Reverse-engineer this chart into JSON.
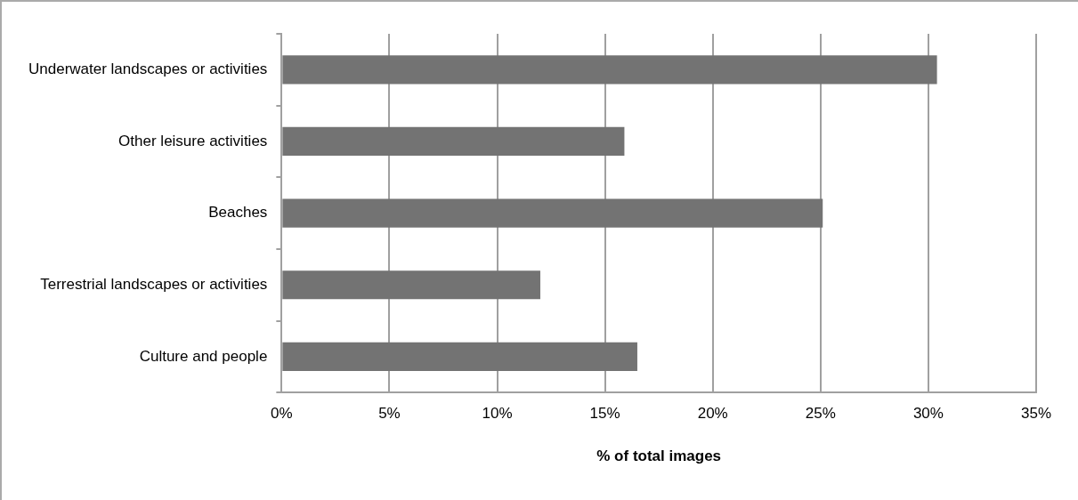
{
  "chart_data": {
    "type": "bar",
    "orientation": "horizontal",
    "xlabel": "% of total images",
    "categories": [
      "Underwater landscapes or activities",
      "Other leisure activities",
      "Beaches",
      "Terrestrial landscapes or activities",
      "Culture and people"
    ],
    "values": [
      30.4,
      15.9,
      25.1,
      12.0,
      16.5
    ],
    "color": "#737373",
    "xlim": [
      0,
      35
    ],
    "xticks": [
      {
        "value": 0,
        "label": "0%"
      },
      {
        "value": 5,
        "label": "5%"
      },
      {
        "value": 10,
        "label": "10%"
      },
      {
        "value": 15,
        "label": "15%"
      },
      {
        "value": 20,
        "label": "20%"
      },
      {
        "value": 25,
        "label": "25%"
      },
      {
        "value": 30,
        "label": "30%"
      },
      {
        "value": 35,
        "label": "35%"
      }
    ],
    "grid": "x",
    "legend": false
  }
}
